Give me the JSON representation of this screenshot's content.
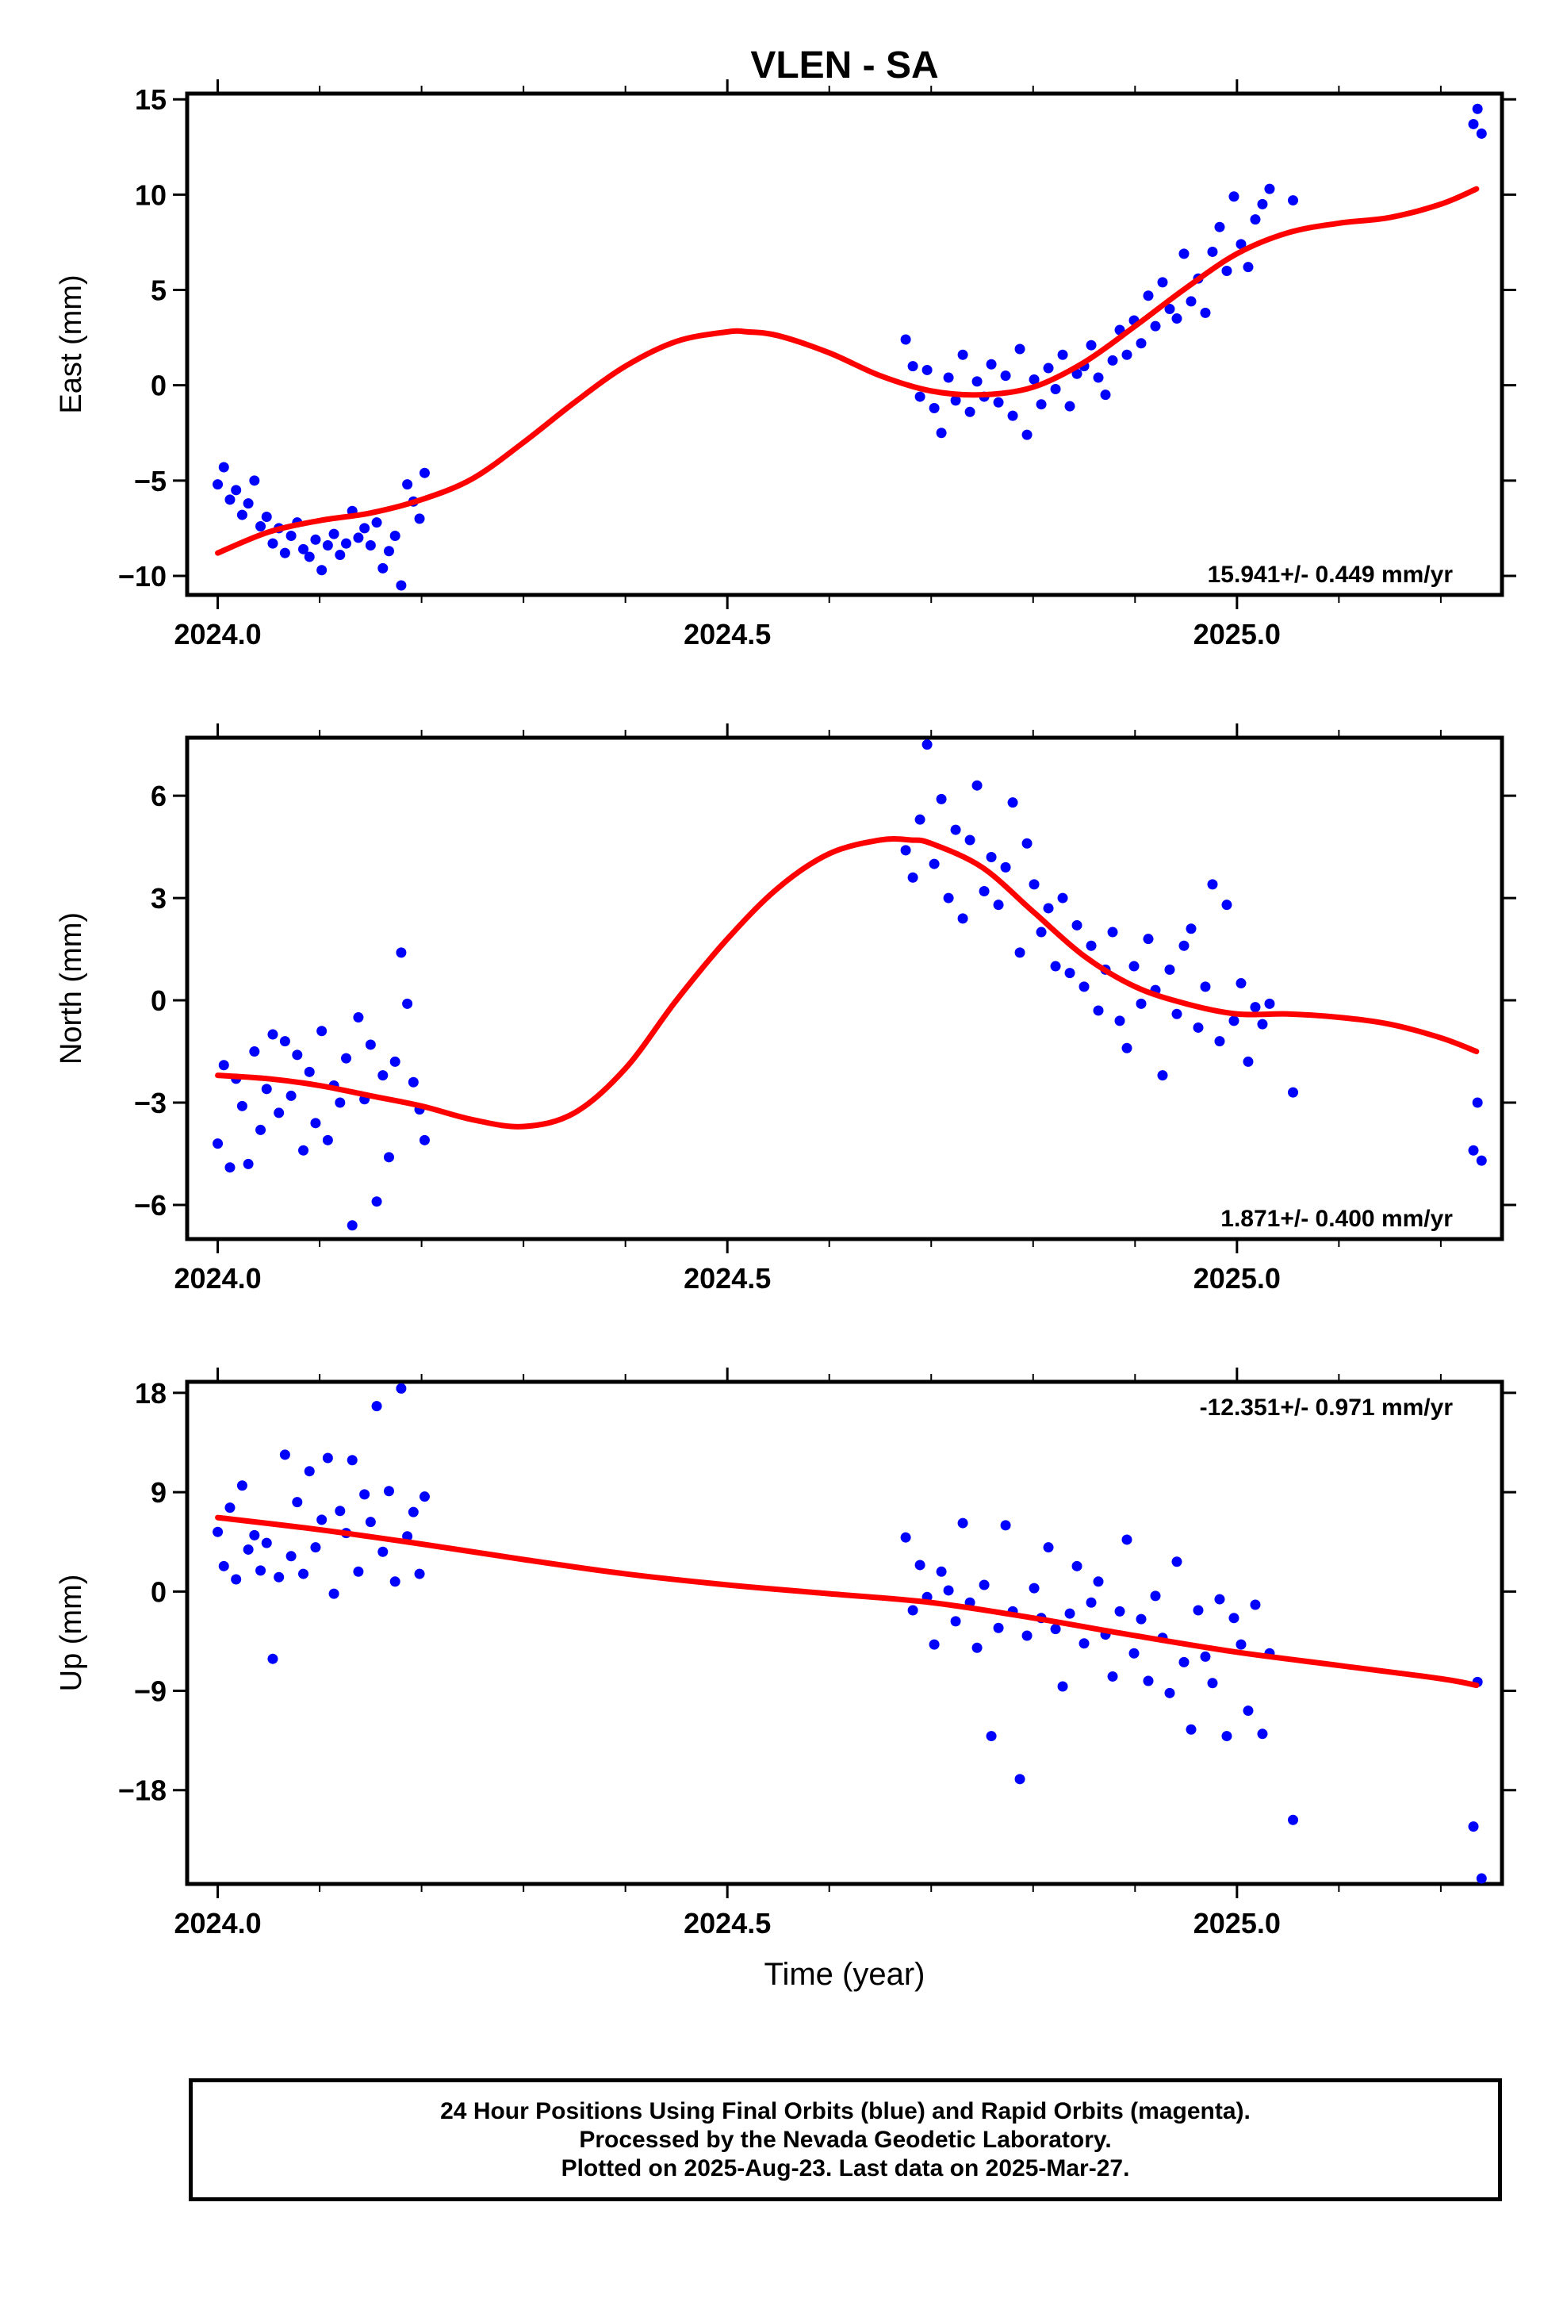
{
  "title": "VLEN - SA",
  "xlabel": "Time (year)",
  "footer": [
    "24 Hour Positions Using Final Orbits (blue) and Rapid Orbits (magenta).",
    "Processed by the Nevada Geodetic Laboratory.",
    "Plotted on 2025-Aug-23. Last data on 2025-Mar-27."
  ],
  "colors": {
    "points": "#0000ff",
    "fit": "#ff0000",
    "axes": "#000000"
  },
  "chart_data": [
    {
      "type": "scatter",
      "ylabel": "East (mm)",
      "rate": "15.941+/- 0.449 mm/yr",
      "rate_placement": "bottom-right",
      "xlim": [
        2023.97,
        2025.26
      ],
      "ylim": [
        -11,
        15.3
      ],
      "xticks": [
        2024.0,
        2024.5,
        2025.0
      ],
      "xtick_labels": [
        "2024.0",
        "2024.5",
        "2025.0"
      ],
      "yticks": [
        -10,
        -5,
        0,
        5,
        10,
        15
      ],
      "ytick_labels": [
        "−10",
        "−5",
        "0",
        "5",
        "10",
        "15"
      ],
      "series": [
        {
          "role": "observations",
          "x": [
            2024.0,
            2024.006,
            2024.012,
            2024.018,
            2024.024,
            2024.03,
            2024.036,
            2024.042,
            2024.048,
            2024.054,
            2024.06,
            2024.066,
            2024.072,
            2024.078,
            2024.084,
            2024.09,
            2024.096,
            2024.102,
            2024.108,
            2024.114,
            2024.12,
            2024.126,
            2024.132,
            2024.138,
            2024.144,
            2024.15,
            2024.156,
            2024.162,
            2024.168,
            2024.174,
            2024.18,
            2024.186,
            2024.192,
            2024.198,
            2024.203,
            2024.675,
            2024.682,
            2024.689,
            2024.696,
            2024.703,
            2024.71,
            2024.717,
            2024.724,
            2024.731,
            2024.738,
            2024.745,
            2024.752,
            2024.759,
            2024.766,
            2024.773,
            2024.78,
            2024.787,
            2024.794,
            2024.801,
            2024.808,
            2024.815,
            2024.822,
            2024.829,
            2024.836,
            2024.843,
            2024.85,
            2024.857,
            2024.864,
            2024.871,
            2024.878,
            2024.885,
            2024.892,
            2024.899,
            2024.906,
            2024.913,
            2024.92,
            2024.927,
            2024.934,
            2024.941,
            2024.948,
            2024.955,
            2024.962,
            2024.969,
            2024.976,
            2024.983,
            2024.99,
            2024.997,
            2025.004,
            2025.011,
            2025.018,
            2025.025,
            2025.032,
            2025.055,
            2025.232,
            2025.236,
            2025.24
          ],
          "y": [
            -5.2,
            -4.3,
            -6.0,
            -5.5,
            -6.8,
            -6.2,
            -5.0,
            -7.4,
            -6.9,
            -8.3,
            -7.5,
            -8.8,
            -7.9,
            -7.2,
            -8.6,
            -9.0,
            -8.1,
            -9.7,
            -8.4,
            -7.8,
            -8.9,
            -8.3,
            -6.6,
            -8.0,
            -7.5,
            -8.4,
            -7.2,
            -9.6,
            -8.7,
            -7.9,
            -10.5,
            -5.2,
            -6.1,
            -7.0,
            -4.6,
            2.4,
            1.0,
            -0.6,
            0.8,
            -1.2,
            -2.5,
            0.4,
            -0.8,
            1.6,
            -1.4,
            0.2,
            -0.6,
            1.1,
            -0.9,
            0.5,
            -1.6,
            1.9,
            -2.6,
            0.3,
            -1.0,
            0.9,
            -0.2,
            1.6,
            -1.1,
            0.6,
            1.0,
            2.1,
            0.4,
            -0.5,
            1.3,
            2.9,
            1.6,
            3.4,
            2.2,
            4.7,
            3.1,
            5.4,
            4.0,
            3.5,
            6.9,
            4.4,
            5.6,
            3.8,
            7.0,
            8.3,
            6.0,
            9.9,
            7.4,
            6.2,
            8.7,
            9.5,
            10.3,
            9.7,
            13.7,
            14.5,
            13.2
          ]
        },
        {
          "role": "fit",
          "x": [
            2024.0,
            2024.05,
            2024.1,
            2024.15,
            2024.2,
            2024.25,
            2024.3,
            2024.35,
            2024.4,
            2024.45,
            2024.5,
            2024.52,
            2024.55,
            2024.6,
            2024.65,
            2024.7,
            2024.75,
            2024.8,
            2024.85,
            2024.9,
            2024.95,
            2025.0,
            2025.05,
            2025.1,
            2025.15,
            2025.2,
            2025.235
          ],
          "y": [
            -8.8,
            -7.7,
            -7.1,
            -6.7,
            -6.0,
            -4.9,
            -3.0,
            -0.9,
            1.0,
            2.3,
            2.8,
            2.8,
            2.6,
            1.7,
            0.5,
            -0.3,
            -0.5,
            -0.1,
            1.2,
            3.1,
            5.1,
            6.9,
            8.0,
            8.5,
            8.8,
            9.5,
            10.3
          ]
        }
      ]
    },
    {
      "type": "scatter",
      "ylabel": "North (mm)",
      "rate": "1.871+/- 0.400 mm/yr",
      "rate_placement": "bottom-right",
      "xlim": [
        2023.97,
        2025.26
      ],
      "ylim": [
        -7,
        7.7
      ],
      "xticks": [
        2024.0,
        2024.5,
        2025.0
      ],
      "xtick_labels": [
        "2024.0",
        "2024.5",
        "2025.0"
      ],
      "yticks": [
        -6,
        -3,
        0,
        3,
        6
      ],
      "ytick_labels": [
        "−6",
        "−3",
        "0",
        "3",
        "6"
      ],
      "series": [
        {
          "role": "observations",
          "x": [
            2024.0,
            2024.006,
            2024.012,
            2024.018,
            2024.024,
            2024.03,
            2024.036,
            2024.042,
            2024.048,
            2024.054,
            2024.06,
            2024.066,
            2024.072,
            2024.078,
            2024.084,
            2024.09,
            2024.096,
            2024.102,
            2024.108,
            2024.114,
            2024.12,
            2024.126,
            2024.132,
            2024.138,
            2024.144,
            2024.15,
            2024.156,
            2024.162,
            2024.168,
            2024.174,
            2024.18,
            2024.186,
            2024.192,
            2024.198,
            2024.203,
            2024.675,
            2024.682,
            2024.689,
            2024.696,
            2024.703,
            2024.71,
            2024.717,
            2024.724,
            2024.731,
            2024.738,
            2024.745,
            2024.752,
            2024.759,
            2024.766,
            2024.773,
            2024.78,
            2024.787,
            2024.794,
            2024.801,
            2024.808,
            2024.815,
            2024.822,
            2024.829,
            2024.836,
            2024.843,
            2024.85,
            2024.857,
            2024.864,
            2024.871,
            2024.878,
            2024.885,
            2024.892,
            2024.899,
            2024.906,
            2024.913,
            2024.92,
            2024.927,
            2024.934,
            2024.941,
            2024.948,
            2024.955,
            2024.962,
            2024.969,
            2024.976,
            2024.983,
            2024.99,
            2024.997,
            2025.004,
            2025.011,
            2025.018,
            2025.025,
            2025.032,
            2025.055,
            2025.232,
            2025.236,
            2025.24
          ],
          "y": [
            -4.2,
            -1.9,
            -4.9,
            -2.3,
            -3.1,
            -4.8,
            -1.5,
            -3.8,
            -2.6,
            -1.0,
            -3.3,
            -1.2,
            -2.8,
            -1.6,
            -4.4,
            -2.1,
            -3.6,
            -0.9,
            -4.1,
            -2.5,
            -3.0,
            -1.7,
            -6.6,
            -0.5,
            -2.9,
            -1.3,
            -5.9,
            -2.2,
            -4.6,
            -1.8,
            1.4,
            -0.1,
            -2.4,
            -3.2,
            -4.1,
            4.4,
            3.6,
            5.3,
            7.5,
            4.0,
            5.9,
            3.0,
            5.0,
            2.4,
            4.7,
            6.3,
            3.2,
            4.2,
            2.8,
            3.9,
            5.8,
            1.4,
            4.6,
            3.4,
            2.0,
            2.7,
            1.0,
            3.0,
            0.8,
            2.2,
            0.4,
            1.6,
            -0.3,
            0.9,
            2.0,
            -0.6,
            -1.4,
            1.0,
            -0.1,
            1.8,
            0.3,
            -2.2,
            0.9,
            -0.4,
            1.6,
            2.1,
            -0.8,
            0.4,
            3.4,
            -1.2,
            2.8,
            -0.6,
            0.5,
            -1.8,
            -0.2,
            -0.7,
            -0.1,
            -2.7,
            -4.4,
            -3.0,
            -4.7
          ]
        },
        {
          "role": "fit",
          "x": [
            2024.0,
            2024.05,
            2024.1,
            2024.15,
            2024.2,
            2024.25,
            2024.3,
            2024.35,
            2024.4,
            2024.45,
            2024.5,
            2024.55,
            2024.6,
            2024.65,
            2024.68,
            2024.7,
            2024.75,
            2024.8,
            2024.85,
            2024.9,
            2024.95,
            2025.0,
            2025.05,
            2025.1,
            2025.15,
            2025.2,
            2025.235
          ],
          "y": [
            -2.2,
            -2.3,
            -2.5,
            -2.8,
            -3.1,
            -3.5,
            -3.7,
            -3.3,
            -2.0,
            0.0,
            1.8,
            3.3,
            4.3,
            4.7,
            4.7,
            4.6,
            3.9,
            2.6,
            1.3,
            0.4,
            -0.1,
            -0.4,
            -0.4,
            -0.5,
            -0.7,
            -1.1,
            -1.5
          ]
        }
      ]
    },
    {
      "type": "scatter",
      "ylabel": "Up (mm)",
      "xlabel": "Time (year)",
      "rate": "-12.351+/- 0.971 mm/yr",
      "rate_placement": "top-right",
      "xlim": [
        2023.97,
        2025.26
      ],
      "ylim": [
        -26.5,
        19
      ],
      "xticks": [
        2024.0,
        2024.5,
        2025.0
      ],
      "xtick_labels": [
        "2024.0",
        "2024.5",
        "2025.0"
      ],
      "yticks": [
        -18,
        -9,
        0,
        9,
        18
      ],
      "ytick_labels": [
        "−18",
        "−9",
        "0",
        "9",
        "18"
      ],
      "series": [
        {
          "role": "observations",
          "x": [
            2024.0,
            2024.006,
            2024.012,
            2024.018,
            2024.024,
            2024.03,
            2024.036,
            2024.042,
            2024.048,
            2024.054,
            2024.06,
            2024.066,
            2024.072,
            2024.078,
            2024.084,
            2024.09,
            2024.096,
            2024.102,
            2024.108,
            2024.114,
            2024.12,
            2024.126,
            2024.132,
            2024.138,
            2024.144,
            2024.15,
            2024.156,
            2024.162,
            2024.168,
            2024.174,
            2024.18,
            2024.186,
            2024.192,
            2024.198,
            2024.203,
            2024.675,
            2024.682,
            2024.689,
            2024.696,
            2024.703,
            2024.71,
            2024.717,
            2024.724,
            2024.731,
            2024.738,
            2024.745,
            2024.752,
            2024.759,
            2024.766,
            2024.773,
            2024.78,
            2024.787,
            2024.794,
            2024.801,
            2024.808,
            2024.815,
            2024.822,
            2024.829,
            2024.836,
            2024.843,
            2024.85,
            2024.857,
            2024.864,
            2024.871,
            2024.878,
            2024.885,
            2024.892,
            2024.899,
            2024.906,
            2024.913,
            2024.92,
            2024.927,
            2024.934,
            2024.941,
            2024.948,
            2024.955,
            2024.962,
            2024.969,
            2024.976,
            2024.983,
            2024.99,
            2024.997,
            2025.004,
            2025.011,
            2025.018,
            2025.025,
            2025.032,
            2025.055,
            2025.232,
            2025.236,
            2025.24
          ],
          "y": [
            5.4,
            2.3,
            7.6,
            1.1,
            9.6,
            3.8,
            5.1,
            1.9,
            4.4,
            -6.1,
            1.3,
            12.4,
            3.2,
            8.1,
            1.6,
            10.9,
            4.0,
            6.5,
            12.1,
            -0.2,
            7.3,
            5.3,
            11.9,
            1.8,
            8.8,
            6.3,
            16.8,
            3.6,
            9.1,
            0.9,
            18.4,
            5.0,
            7.2,
            1.6,
            8.6,
            4.9,
            -1.7,
            2.4,
            -0.5,
            -4.8,
            1.8,
            0.1,
            -2.7,
            6.2,
            -1.0,
            -5.1,
            0.6,
            -13.1,
            -3.3,
            6.0,
            -1.8,
            -17.0,
            -4.0,
            0.3,
            -2.4,
            4.0,
            -3.4,
            -8.6,
            -2.0,
            2.3,
            -4.7,
            -1.0,
            0.9,
            -3.9,
            -7.7,
            -1.8,
            4.7,
            -5.6,
            -2.5,
            -8.1,
            -0.4,
            -4.2,
            -9.2,
            2.7,
            -6.4,
            -12.5,
            -1.7,
            -5.9,
            -8.3,
            -0.7,
            -13.1,
            -2.4,
            -4.8,
            -10.8,
            -1.2,
            -12.9,
            -5.6,
            -20.7,
            -21.3,
            -8.2,
            -26.0
          ]
        },
        {
          "role": "fit",
          "x": [
            2024.0,
            2024.1,
            2024.2,
            2024.3,
            2024.4,
            2024.5,
            2024.6,
            2024.7,
            2024.8,
            2024.9,
            2025.0,
            2025.1,
            2025.2,
            2025.235
          ],
          "y": [
            6.7,
            5.6,
            4.3,
            2.9,
            1.6,
            0.6,
            -0.2,
            -1.0,
            -2.4,
            -4.0,
            -5.5,
            -6.7,
            -7.9,
            -8.5
          ]
        }
      ]
    }
  ]
}
